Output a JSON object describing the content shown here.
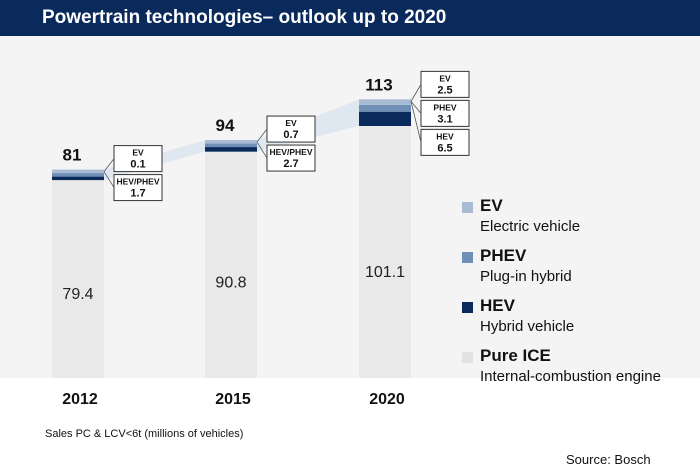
{
  "header": {
    "title": "Powertrain technologies– outlook up to 2020"
  },
  "chart_data": {
    "type": "bar",
    "stacked": true,
    "categories": [
      "2012",
      "2015",
      "2020"
    ],
    "totals": [
      "81",
      "94",
      "113"
    ],
    "series": [
      {
        "name": "Pure ICE",
        "values": [
          79.4,
          90.8,
          101.1
        ],
        "labels": [
          "79.4",
          "90.8",
          "101.1"
        ],
        "color": "#e9e9e9"
      },
      {
        "name": "HEV",
        "values": [
          1.5,
          2.1,
          6.5
        ],
        "color": "#0b2a5c"
      },
      {
        "name": "PHEV",
        "values": [
          0.2,
          0.6,
          3.1
        ],
        "color": "#6f8fb7"
      },
      {
        "name": "EV",
        "values": [
          0.1,
          0.7,
          2.5
        ],
        "color": "#a8bbd3"
      }
    ],
    "callouts": [
      [
        {
          "label": "EV",
          "value": "0.1"
        },
        {
          "label": "HEV/PHEV",
          "value": "1.7"
        }
      ],
      [
        {
          "label": "EV",
          "value": "0.7"
        },
        {
          "label": "HEV/PHEV",
          "value": "2.7"
        }
      ],
      [
        {
          "label": "EV",
          "value": "2.5"
        },
        {
          "label": "PHEV",
          "value": "3.1"
        },
        {
          "label": "HEV",
          "value": "6.5"
        }
      ]
    ],
    "legend": [
      {
        "name": "EV",
        "description": "Electric vehicle",
        "color": "#a8bbd3"
      },
      {
        "name": "PHEV",
        "description": "Plug-in hybrid",
        "color": "#6f8fb7"
      },
      {
        "name": "HEV",
        "description": "Hybrid vehicle",
        "color": "#0b2a5c"
      },
      {
        "name": "Pure ICE",
        "description": "Internal-combustion engine",
        "color": "#e9e9e9"
      }
    ],
    "legend_position": "right",
    "grid": false
  },
  "footnote": "Sales PC & LCV<6t  (millions of vehicles)",
  "source": "Source: Bosch"
}
